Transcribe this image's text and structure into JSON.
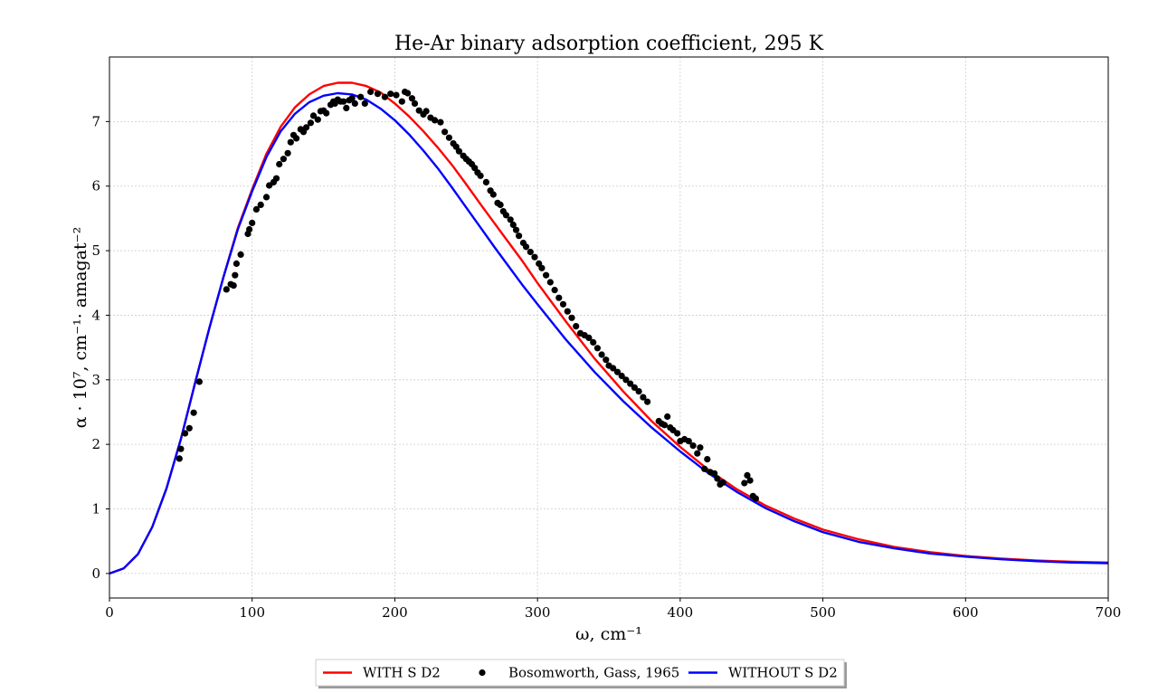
{
  "chart_data": {
    "type": "line",
    "title": "He-Ar binary adsorption coefficient, 295 K",
    "xlabel": "ω, cm⁻¹",
    "ylabel": "α · 10⁷, cm⁻¹· amagat⁻²",
    "xlim": [
      0,
      700
    ],
    "ylim": [
      -0.38,
      8.0
    ],
    "xticks": [
      0,
      100,
      200,
      300,
      400,
      500,
      600,
      700
    ],
    "yticks": [
      0,
      1,
      2,
      3,
      4,
      5,
      6,
      7
    ],
    "grid": true,
    "legend_placement": "bottom-center, outside plot",
    "series": [
      {
        "name": "WITH S D2",
        "kind": "line",
        "color": "#ff0000",
        "x": [
          0,
          10,
          20,
          30,
          40,
          50,
          60,
          70,
          80,
          90,
          100,
          110,
          120,
          130,
          140,
          150,
          160,
          170,
          180,
          190,
          200,
          210,
          220,
          230,
          240,
          250,
          260,
          270,
          280,
          290,
          300,
          320,
          340,
          360,
          380,
          400,
          420,
          440,
          460,
          480,
          500,
          525,
          550,
          575,
          600,
          625,
          650,
          675,
          700
        ],
        "y": [
          0.0,
          0.08,
          0.3,
          0.72,
          1.32,
          2.08,
          2.95,
          3.8,
          4.6,
          5.35,
          5.95,
          6.5,
          6.92,
          7.22,
          7.42,
          7.55,
          7.6,
          7.6,
          7.55,
          7.45,
          7.28,
          7.08,
          6.85,
          6.6,
          6.33,
          6.03,
          5.72,
          5.42,
          5.12,
          4.82,
          4.5,
          3.9,
          3.33,
          2.82,
          2.36,
          1.96,
          1.6,
          1.3,
          1.05,
          0.85,
          0.68,
          0.53,
          0.41,
          0.33,
          0.27,
          0.23,
          0.2,
          0.18,
          0.17
        ]
      },
      {
        "name": "WITHOUT S D2",
        "kind": "line",
        "color": "#0000ff",
        "x": [
          0,
          10,
          20,
          30,
          40,
          50,
          60,
          70,
          80,
          90,
          100,
          110,
          120,
          130,
          140,
          150,
          160,
          170,
          180,
          190,
          200,
          210,
          220,
          230,
          240,
          250,
          260,
          270,
          280,
          290,
          300,
          320,
          340,
          360,
          380,
          400,
          420,
          440,
          460,
          480,
          500,
          525,
          550,
          575,
          600,
          625,
          650,
          675,
          700
        ],
        "y": [
          0.0,
          0.08,
          0.3,
          0.72,
          1.32,
          2.08,
          2.95,
          3.8,
          4.6,
          5.33,
          5.92,
          6.45,
          6.85,
          7.12,
          7.3,
          7.4,
          7.44,
          7.42,
          7.34,
          7.2,
          7.02,
          6.8,
          6.55,
          6.28,
          5.98,
          5.67,
          5.36,
          5.05,
          4.75,
          4.45,
          4.17,
          3.62,
          3.12,
          2.67,
          2.26,
          1.89,
          1.55,
          1.26,
          1.01,
          0.81,
          0.64,
          0.49,
          0.39,
          0.31,
          0.26,
          0.22,
          0.19,
          0.17,
          0.16
        ]
      },
      {
        "name": "Bosomworth, Gass, 1965",
        "kind": "scatter",
        "color": "#000000",
        "x": [
          49,
          50,
          53,
          56,
          59,
          63,
          82,
          85,
          87,
          88,
          89,
          92,
          97,
          98,
          100,
          103,
          106,
          110,
          112,
          115,
          117,
          119,
          122,
          125,
          127,
          129,
          131,
          134,
          136,
          138,
          141,
          143,
          146,
          148,
          150,
          152,
          155,
          157,
          158,
          160,
          162,
          164,
          166,
          168,
          170,
          172,
          176,
          179,
          183,
          188,
          193,
          197,
          201,
          205,
          207,
          209,
          212,
          214,
          217,
          220,
          222,
          225,
          228,
          232,
          235,
          238,
          241,
          243,
          245,
          248,
          250,
          252,
          254,
          256,
          258,
          260,
          264,
          267,
          269,
          272,
          274,
          276,
          278,
          281,
          283,
          285,
          287,
          290,
          292,
          295,
          298,
          301,
          303,
          306,
          309,
          312,
          315,
          318,
          321,
          324,
          327,
          330,
          333,
          336,
          339,
          342,
          345,
          348,
          350,
          353,
          356,
          359,
          362,
          365,
          368,
          371,
          374,
          377,
          385,
          387,
          389,
          391,
          393,
          395,
          398,
          400,
          403,
          406,
          409,
          412,
          414,
          417,
          419,
          421,
          424,
          426,
          428,
          430,
          445,
          447,
          449,
          451,
          453
        ],
        "y": [
          1.78,
          1.93,
          2.17,
          2.25,
          2.49,
          2.97,
          4.4,
          4.48,
          4.46,
          4.62,
          4.8,
          4.94,
          5.26,
          5.33,
          5.43,
          5.64,
          5.71,
          5.83,
          6.01,
          6.06,
          6.12,
          6.34,
          6.42,
          6.51,
          6.68,
          6.79,
          6.74,
          6.88,
          6.84,
          6.91,
          6.98,
          7.09,
          7.03,
          7.16,
          7.17,
          7.13,
          7.26,
          7.31,
          7.28,
          7.34,
          7.31,
          7.31,
          7.21,
          7.33,
          7.36,
          7.28,
          7.38,
          7.28,
          7.46,
          7.43,
          7.38,
          7.43,
          7.41,
          7.31,
          7.46,
          7.44,
          7.36,
          7.28,
          7.17,
          7.11,
          7.16,
          7.06,
          7.02,
          6.99,
          6.84,
          6.75,
          6.66,
          6.61,
          6.54,
          6.47,
          6.42,
          6.38,
          6.34,
          6.28,
          6.21,
          6.16,
          6.06,
          5.93,
          5.87,
          5.74,
          5.71,
          5.61,
          5.55,
          5.48,
          5.4,
          5.32,
          5.23,
          5.12,
          5.06,
          4.98,
          4.9,
          4.8,
          4.73,
          4.62,
          4.51,
          4.39,
          4.27,
          4.17,
          4.06,
          3.96,
          3.83,
          3.72,
          3.69,
          3.65,
          3.58,
          3.49,
          3.39,
          3.31,
          3.22,
          3.18,
          3.12,
          3.06,
          3.0,
          2.94,
          2.88,
          2.82,
          2.73,
          2.66,
          2.36,
          2.32,
          2.3,
          2.43,
          2.26,
          2.22,
          2.17,
          2.05,
          2.08,
          2.05,
          1.98,
          1.86,
          1.95,
          1.62,
          1.77,
          1.57,
          1.55,
          1.47,
          1.38,
          1.41,
          1.4,
          1.52,
          1.44,
          1.2,
          1.16
        ]
      }
    ]
  }
}
